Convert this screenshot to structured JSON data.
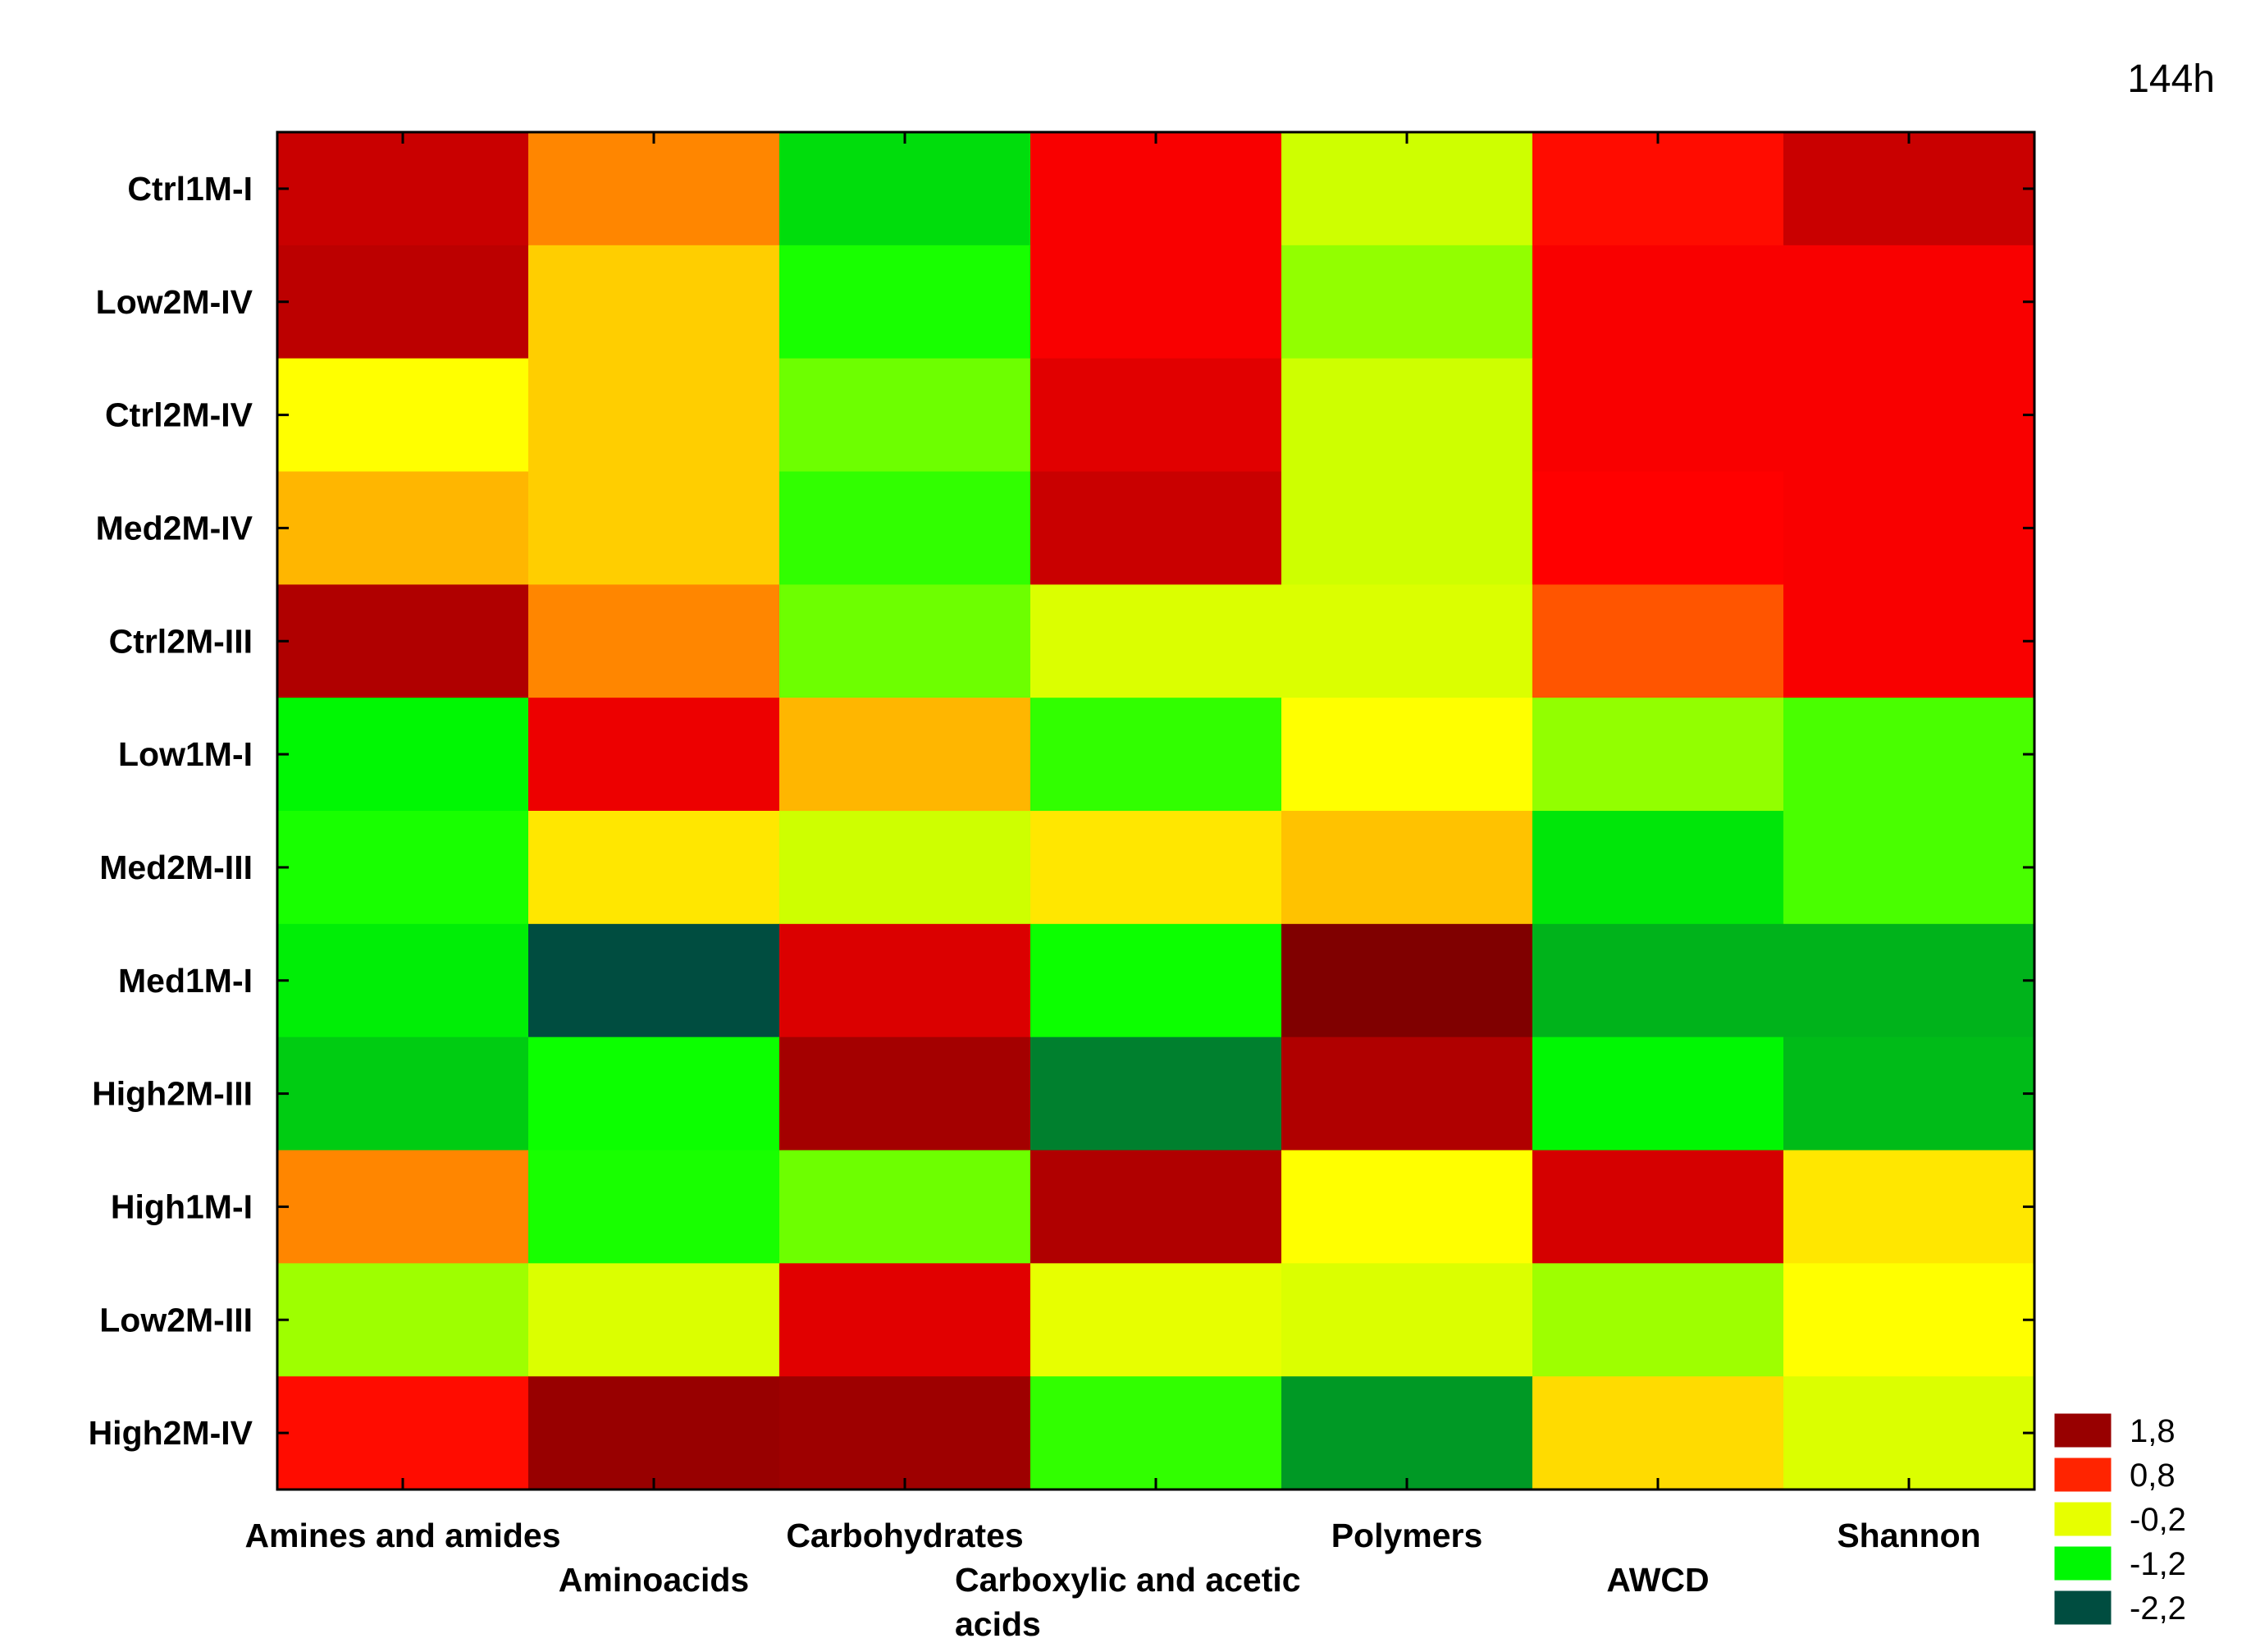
{
  "chart_data": {
    "type": "heatmap",
    "title": "144h",
    "rows": [
      "Ctrl1M-I",
      "Low2M-IV",
      "Ctrl2M-IV",
      "Med2M-IV",
      "Ctrl2M-III",
      "Low1M-I",
      "Med2M-III",
      "Med1M-I",
      "High2M-III",
      "High1M-I",
      "Low2M-III",
      "High2M-IV"
    ],
    "columns": [
      "Amines and amides",
      "Aminoacids",
      "Carbohydrates",
      "Carboxylic and acetic acids",
      "Polymers",
      "AWCD",
      "Shannon"
    ],
    "column_label_lines": [
      [
        "Amines and amides"
      ],
      [
        "Aminoacids"
      ],
      [
        "Carbohydrates"
      ],
      [
        "Carboxylic and acetic",
        "acids"
      ],
      [
        "Polymers"
      ],
      [
        "AWCD"
      ],
      [
        "Shannon"
      ]
    ],
    "values": [
      [
        1.4,
        0.4,
        -1.35,
        1.0,
        -0.3,
        0.9,
        1.4
      ],
      [
        1.5,
        0.1,
        -1.05,
        1.0,
        -0.55,
        1.0,
        1.0
      ],
      [
        -0.1,
        0.1,
        -0.7,
        1.2,
        -0.3,
        1.0,
        1.0
      ],
      [
        0.2,
        0.1,
        -0.95,
        1.4,
        -0.3,
        0.95,
        1.0
      ],
      [
        1.6,
        0.4,
        -0.7,
        -0.25,
        -0.25,
        0.6,
        1.0
      ],
      [
        -1.2,
        1.1,
        0.2,
        -0.95,
        -0.1,
        -0.55,
        -0.85
      ],
      [
        -1.05,
        0.0,
        -0.3,
        0.0,
        0.15,
        -1.3,
        -0.85
      ],
      [
        -1.25,
        -2.2,
        1.25,
        -1.1,
        2.0,
        -1.6,
        -1.6
      ],
      [
        -1.45,
        -1.1,
        1.7,
        -1.9,
        1.6,
        -1.2,
        -1.55
      ],
      [
        0.4,
        -1.05,
        -0.7,
        1.6,
        -0.1,
        1.3,
        0.0
      ],
      [
        -0.5,
        -0.25,
        1.2,
        -0.2,
        -0.25,
        -0.5,
        -0.1
      ],
      [
        0.9,
        1.8,
        1.75,
        -0.95,
        -1.75,
        0.05,
        -0.25
      ]
    ],
    "legend": {
      "position": "bottom-right",
      "entries": [
        {
          "label": "1,8",
          "value": 1.8
        },
        {
          "label": "0,8",
          "value": 0.8
        },
        {
          "label": "-0,2",
          "value": -0.2
        },
        {
          "label": "-1,2",
          "value": -1.2
        },
        {
          "label": "-2,2",
          "value": -2.2
        }
      ]
    },
    "color_scale": [
      "#004d40",
      "#00ff00",
      "#ffff00",
      "#ff0000",
      "#800000"
    ]
  }
}
